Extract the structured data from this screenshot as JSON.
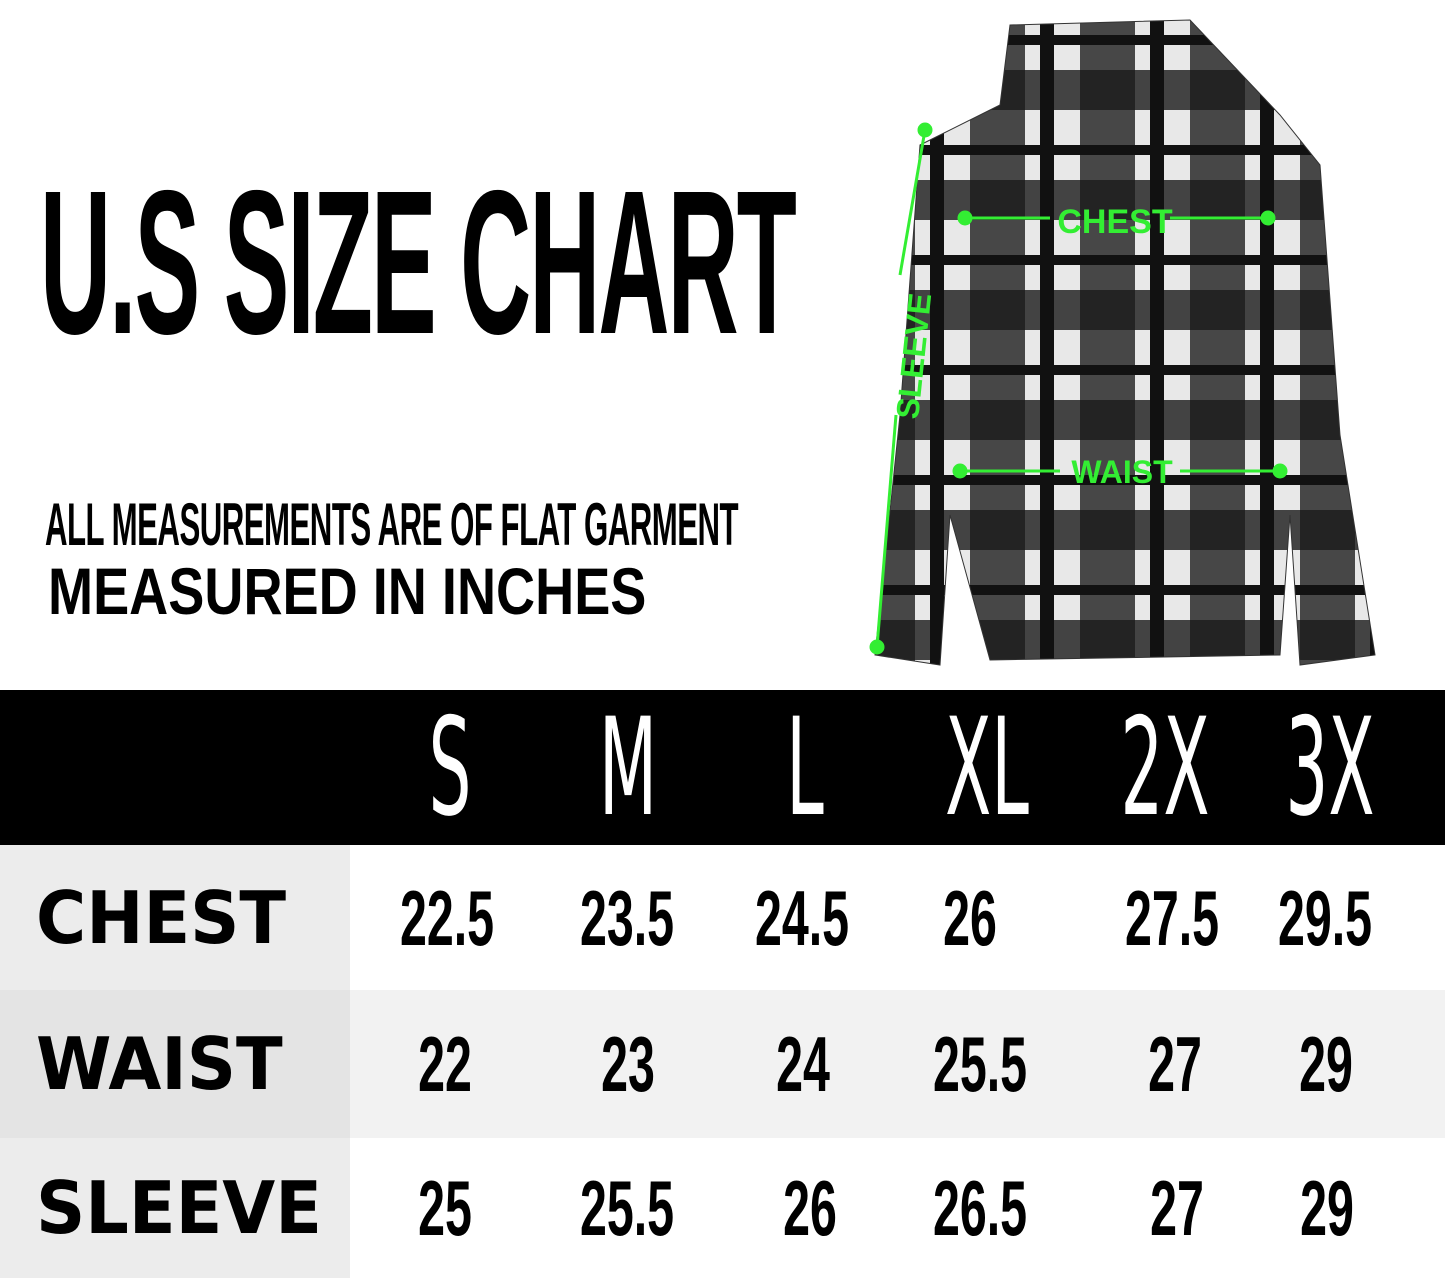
{
  "title": "U.S SIZE CHART",
  "subtitle_line1": "ALL MEASUREMENTS ARE OF FLAT GARMENT",
  "subtitle_line2": "MEASURED IN INCHES",
  "diagram_labels": {
    "chest": "CHEST",
    "waist": "WAIST",
    "sleeve": "SLEEVE"
  },
  "measure_color": "#33ee33",
  "sizes": [
    "S",
    "M",
    "L",
    "XL",
    "2X",
    "3X"
  ],
  "rows": [
    {
      "label": "CHEST",
      "values": [
        "22.5",
        "23.5",
        "24.5",
        "26",
        "27.5",
        "29.5"
      ]
    },
    {
      "label": "WAIST",
      "values": [
        "22",
        "23",
        "24",
        "25.5",
        "27",
        "29"
      ]
    },
    {
      "label": "SLEEVE",
      "values": [
        "25",
        "25.5",
        "26",
        "26.5",
        "27",
        "29"
      ]
    }
  ]
}
